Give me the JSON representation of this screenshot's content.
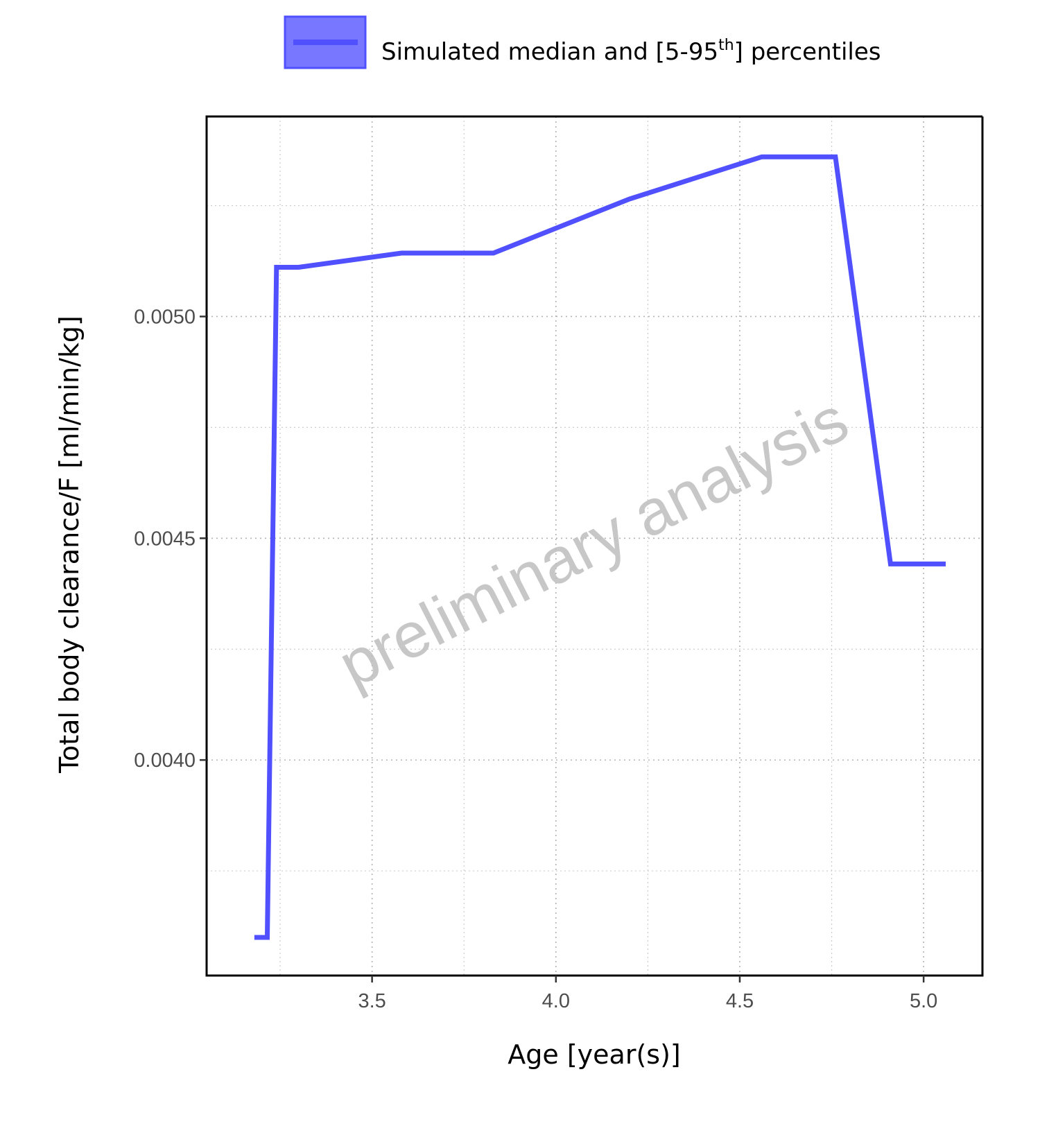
{
  "chart_data": {
    "type": "line",
    "xlabel": "Age [year(s)]",
    "ylabel": "Total body clearance/F [ml/min/kg]",
    "xlim": [
      3.05,
      5.16
    ],
    "ylim": [
      0.003514,
      0.005451
    ],
    "x_ticks": [
      {
        "value": 3.5,
        "label": "3.5"
      },
      {
        "value": 4.0,
        "label": "4.0"
      },
      {
        "value": 4.5,
        "label": "4.5"
      },
      {
        "value": 5.0,
        "label": "5.0"
      }
    ],
    "y_ticks": [
      {
        "value": 0.004,
        "label": "0.0040"
      },
      {
        "value": 0.0045,
        "label": "0.0045"
      },
      {
        "value": 0.005,
        "label": "0.0050"
      }
    ],
    "x_minor": [
      3.25,
      3.75,
      4.25,
      4.75
    ],
    "y_minor": [
      0.00375,
      0.00425,
      0.00475,
      0.00525
    ],
    "grid": true,
    "legend": {
      "position": "top",
      "text_main": "Simulated median and [5-95",
      "text_sup": "th",
      "text_end": "] percentiles"
    },
    "watermark": "preliminary analysis",
    "colors": {
      "series": "#5050ff",
      "ribbon": "#7777ff"
    },
    "series": [
      {
        "name": "Simulated median and [5-95th] percentiles",
        "x": [
          3.18,
          3.215,
          3.24,
          3.3,
          3.58,
          3.83,
          4.2,
          4.56,
          4.76,
          4.91,
          5.06
        ],
        "y": [
          0.0036,
          0.0036,
          0.005111,
          0.005111,
          0.005143,
          0.005143,
          0.005265,
          0.00536,
          0.00536,
          0.004442,
          0.004442
        ]
      }
    ]
  }
}
